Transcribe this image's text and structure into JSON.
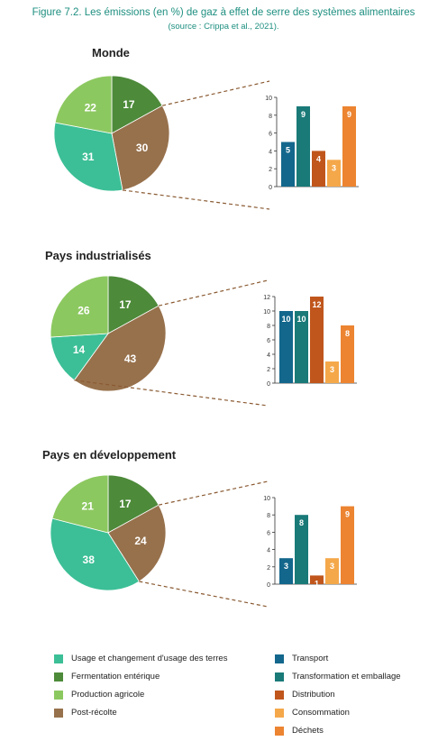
{
  "figure": {
    "title": "Figure 7.2. Les émissions (en %) de gaz à effet de serre des systèmes alimentaires",
    "subtitle": "(source : Crippa et al., 2021)."
  },
  "colors": {
    "land": "#3cbf96",
    "enteric": "#4d8a3a",
    "agri": "#8cc860",
    "post": "#97714c",
    "transport": "#13678c",
    "processing": "#197a78",
    "distribution": "#c0561c",
    "consumption": "#f5a84a",
    "waste": "#ec8431",
    "dashed": "#8a5a32"
  },
  "chart_data": [
    {
      "type": "pie",
      "title": "Monde",
      "categories": [
        "Usage et changement d'usage des terres",
        "Fermentation entérique",
        "Production agricole",
        "Post-récolte"
      ],
      "values": [
        31,
        17,
        22,
        30
      ]
    },
    {
      "type": "bar",
      "title": "Monde",
      "categories": [
        "Transport",
        "Transformation et emballage",
        "Distribution",
        "Consommation",
        "Déchets"
      ],
      "values": [
        5,
        9,
        4,
        3,
        9
      ],
      "ylim": [
        0,
        10
      ],
      "yticks": [
        0,
        2,
        4,
        6,
        8,
        10
      ]
    },
    {
      "type": "pie",
      "title": "Pays industrialisés",
      "categories": [
        "Usage et changement d'usage des terres",
        "Fermentation entérique",
        "Production agricole",
        "Post-récolte"
      ],
      "values": [
        14,
        17,
        26,
        43
      ]
    },
    {
      "type": "bar",
      "title": "Pays industrialisés",
      "categories": [
        "Transport",
        "Transformation et emballage",
        "Distribution",
        "Consommation",
        "Déchets"
      ],
      "values": [
        10,
        10,
        12,
        3,
        8
      ],
      "ylim": [
        0,
        12
      ],
      "yticks": [
        0,
        2,
        4,
        6,
        8,
        10,
        12
      ]
    },
    {
      "type": "pie",
      "title": "Pays en développement",
      "categories": [
        "Usage et changement d'usage des terres",
        "Fermentation entérique",
        "Production agricole",
        "Post-récolte"
      ],
      "values": [
        38,
        17,
        21,
        24
      ]
    },
    {
      "type": "bar",
      "title": "Pays en développement",
      "categories": [
        "Transport",
        "Transformation et emballage",
        "Distribution",
        "Consommation",
        "Déchets"
      ],
      "values": [
        3,
        8,
        1,
        3,
        9
      ],
      "ylim": [
        0,
        10
      ],
      "yticks": [
        0,
        2,
        4,
        6,
        8,
        10
      ]
    }
  ],
  "legend": {
    "left": [
      {
        "label": "Usage et changement d'usage des terres",
        "color": "#3cbf96"
      },
      {
        "label": "Fermentation entérique",
        "color": "#4d8a3a"
      },
      {
        "label": "Production agricole",
        "color": "#8cc860"
      },
      {
        "label": "Post-récolte",
        "color": "#97714c"
      }
    ],
    "right": [
      {
        "label": "Transport",
        "color": "#13678c"
      },
      {
        "label": "Transformation et emballage",
        "color": "#197a78"
      },
      {
        "label": "Distribution",
        "color": "#c0561c"
      },
      {
        "label": "Consommation",
        "color": "#f5a84a"
      },
      {
        "label": "Déchets",
        "color": "#ec8431"
      }
    ]
  }
}
